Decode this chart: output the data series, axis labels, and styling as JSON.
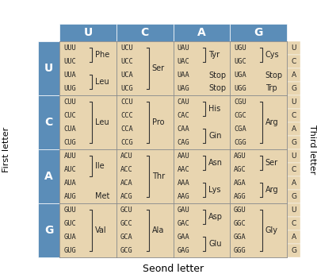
{
  "title": "Seond letter",
  "col_headers": [
    "U",
    "C",
    "A",
    "G"
  ],
  "row_headers": [
    "U",
    "C",
    "A",
    "G"
  ],
  "first_letter_label": "First letter",
  "third_letter_label": "Third letter",
  "third_letters": [
    "U",
    "C",
    "A",
    "G"
  ],
  "header_bg": "#5b8db8",
  "cell_bg": "#e8d5b0",
  "header_text_color": "white",
  "cell_text_color": "#222222",
  "grid": [
    [
      {
        "codons": [
          "UUU",
          "UUC"
        ],
        "amino": "Phe",
        "bracket": "top2",
        "extra": [
          {
            "codons": [
              "UUA",
              "UUG"
            ],
            "amino": "Leu",
            "bracket": "bot2"
          }
        ]
      },
      {
        "codons": [
          "UCU",
          "UCC",
          "UCA",
          "UCG"
        ],
        "amino": "Ser",
        "bracket": "all4"
      },
      {
        "codons": [
          "UAU",
          "UAC"
        ],
        "amino": "Tyr",
        "bracket": "top2",
        "extra": [
          {
            "codons": [
              "UAA",
              "UAG"
            ],
            "aminos": [
              "Stop",
              "Stop"
            ],
            "bracket": "none"
          }
        ]
      },
      {
        "codons": [
          "UGU",
          "UGC"
        ],
        "amino": "Cys",
        "bracket": "top2",
        "extra": [
          {
            "codons": [
              "UGA",
              "UGG"
            ],
            "aminos": [
              "Stop",
              "Trp"
            ],
            "bracket": "none"
          }
        ]
      }
    ],
    [
      {
        "codons": [
          "CUU",
          "CUC",
          "CUA",
          "CUG"
        ],
        "amino": "Leu",
        "bracket": "all4"
      },
      {
        "codons": [
          "CCU",
          "CCC",
          "CCA",
          "CCG"
        ],
        "amino": "Pro",
        "bracket": "all4"
      },
      {
        "codons": [
          "CAU",
          "CAC"
        ],
        "amino": "His",
        "bracket": "top2",
        "extra": [
          {
            "codons": [
              "CAA",
              "CAG"
            ],
            "amino": "Gin",
            "bracket": "bot2"
          }
        ]
      },
      {
        "codons": [
          "CGU",
          "CGC",
          "CGA",
          "CGG"
        ],
        "amino": "Arg",
        "bracket": "all4"
      }
    ],
    [
      {
        "codons": [
          "AUU",
          "AUC",
          "AUA"
        ],
        "amino": "Ile",
        "bracket": "top3",
        "extra": [
          {
            "codons": [
              "AUG"
            ],
            "amino": "Met",
            "bracket": "none_single"
          }
        ]
      },
      {
        "codons": [
          "ACU",
          "ACC",
          "ACA",
          "ACG"
        ],
        "amino": "Thr",
        "bracket": "all4"
      },
      {
        "codons": [
          "AAU",
          "AAC"
        ],
        "amino": "Asn",
        "bracket": "top2",
        "extra": [
          {
            "codons": [
              "AAA",
              "AAG"
            ],
            "amino": "Lys",
            "bracket": "bot2"
          }
        ]
      },
      {
        "codons": [
          "AGU",
          "AGC"
        ],
        "amino": "Ser",
        "bracket": "top2",
        "extra": [
          {
            "codons": [
              "AGA",
              "AGG"
            ],
            "amino": "Arg",
            "bracket": "bot2"
          }
        ]
      }
    ],
    [
      {
        "codons": [
          "GUU",
          "GUC",
          "GUA",
          "GUG"
        ],
        "amino": "Val",
        "bracket": "all4"
      },
      {
        "codons": [
          "GCU",
          "GCC",
          "GCA",
          "GCG"
        ],
        "amino": "Ala",
        "bracket": "all4"
      },
      {
        "codons": [
          "GAU",
          "GAC"
        ],
        "amino": "Asp",
        "bracket": "top2",
        "extra": [
          {
            "codons": [
              "GAA",
              "GAG"
            ],
            "amino": "Glu",
            "bracket": "bot2"
          }
        ]
      },
      {
        "codons": [
          "GGU",
          "GGC",
          "GGA",
          "GGG"
        ],
        "amino": "Gly",
        "bracket": "all4"
      }
    ]
  ]
}
